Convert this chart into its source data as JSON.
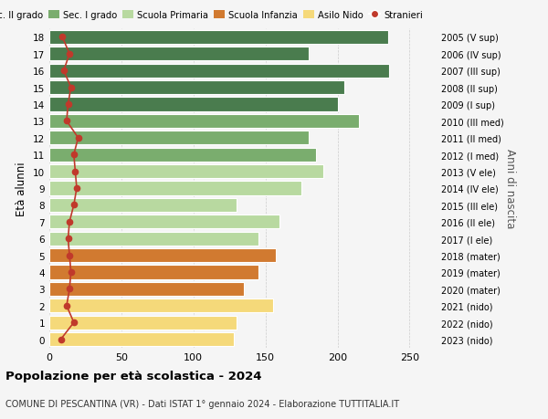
{
  "ages": [
    18,
    17,
    16,
    15,
    14,
    13,
    12,
    11,
    10,
    9,
    8,
    7,
    6,
    5,
    4,
    3,
    2,
    1,
    0
  ],
  "values": [
    235,
    180,
    236,
    205,
    200,
    215,
    180,
    185,
    190,
    175,
    130,
    160,
    145,
    157,
    145,
    135,
    155,
    130,
    128
  ],
  "stranieri": [
    9,
    14,
    10,
    15,
    13,
    12,
    20,
    17,
    18,
    19,
    17,
    14,
    13,
    14,
    15,
    14,
    12,
    17,
    8
  ],
  "right_labels": [
    "2005 (V sup)",
    "2006 (IV sup)",
    "2007 (III sup)",
    "2008 (II sup)",
    "2009 (I sup)",
    "2010 (III med)",
    "2011 (II med)",
    "2012 (I med)",
    "2013 (V ele)",
    "2014 (IV ele)",
    "2015 (III ele)",
    "2016 (II ele)",
    "2017 (I ele)",
    "2018 (mater)",
    "2019 (mater)",
    "2020 (mater)",
    "2021 (nido)",
    "2022 (nido)",
    "2023 (nido)"
  ],
  "bar_colors": [
    "#4a7c4e",
    "#4a7c4e",
    "#4a7c4e",
    "#4a7c4e",
    "#4a7c4e",
    "#7aad6e",
    "#7aad6e",
    "#7aad6e",
    "#b8d9a0",
    "#b8d9a0",
    "#b8d9a0",
    "#b8d9a0",
    "#b8d9a0",
    "#d17a30",
    "#d17a30",
    "#d17a30",
    "#f5d97a",
    "#f5d97a",
    "#f5d97a"
  ],
  "title": "Popolazione per età scolastica - 2024",
  "subtitle": "COMUNE DI PESCANTINA (VR) - Dati ISTAT 1° gennaio 2024 - Elaborazione TUTTITALIA.IT",
  "ylabel": "Età alunni",
  "right_axis_label": "Anni di nascita",
  "xlim": [
    0,
    270
  ],
  "legend_labels": [
    "Sec. II grado",
    "Sec. I grado",
    "Scuola Primaria",
    "Scuola Infanzia",
    "Asilo Nido",
    "Stranieri"
  ],
  "legend_colors": [
    "#4a7c4e",
    "#7aad6e",
    "#b8d9a0",
    "#d17a30",
    "#f5d97a",
    "#c0392b"
  ],
  "bg_color": "#f5f5f5",
  "bar_edge_color": "white",
  "grid_color": "#cccccc",
  "stranieri_color": "#c0392b"
}
